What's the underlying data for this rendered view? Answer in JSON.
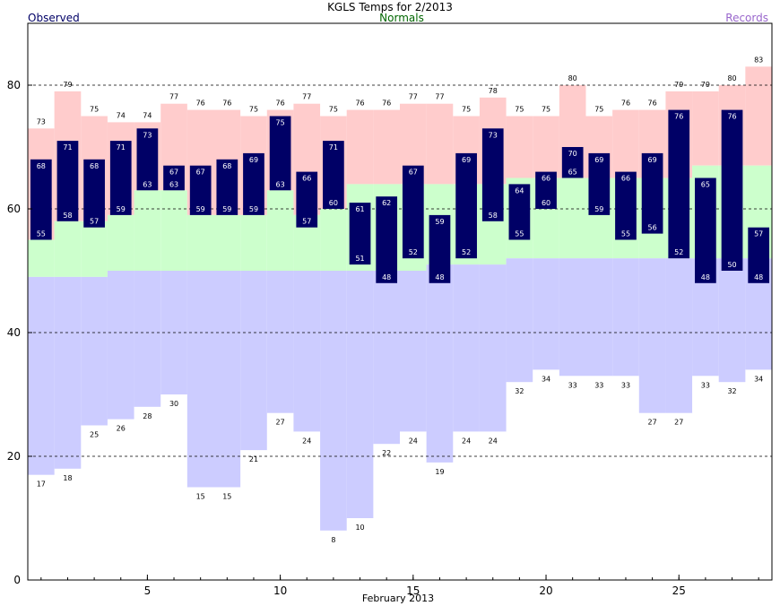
{
  "chart_data": {
    "type": "bar",
    "title": "KGLS Temps for 2/2013",
    "legend": {
      "observed": "Observed",
      "normals": "Normals",
      "records": "Records",
      "placement": "top"
    },
    "xlabel": "February 2013",
    "ylabel": "",
    "xlim": [
      0.5,
      28.5
    ],
    "ylim": [
      0,
      90
    ],
    "grid": "horizontal-dashed",
    "x_ticks": [
      "5",
      "10",
      "15",
      "20",
      "25"
    ],
    "y_ticks": [
      "0",
      "20",
      "40",
      "60",
      "80"
    ],
    "days": [
      1,
      2,
      3,
      4,
      5,
      6,
      7,
      8,
      9,
      10,
      11,
      12,
      13,
      14,
      15,
      16,
      17,
      18,
      19,
      20,
      21,
      22,
      23,
      24,
      25,
      26,
      27,
      28
    ],
    "observed_high": [
      68,
      71,
      68,
      71,
      73,
      67,
      67,
      68,
      69,
      75,
      66,
      71,
      61,
      62,
      67,
      59,
      69,
      73,
      64,
      66,
      70,
      69,
      66,
      69,
      76,
      65,
      76,
      57
    ],
    "observed_low": [
      55,
      58,
      57,
      59,
      63,
      63,
      59,
      59,
      59,
      63,
      57,
      60,
      51,
      48,
      52,
      48,
      52,
      58,
      55,
      60,
      65,
      59,
      55,
      56,
      52,
      48,
      50,
      48
    ],
    "normal_high": [
      55,
      58,
      58,
      59,
      63,
      63,
      59,
      59,
      59,
      63,
      59,
      60,
      64,
      64,
      64,
      64,
      64,
      64,
      65,
      65,
      65,
      65,
      65,
      65,
      65,
      67,
      67,
      67
    ],
    "normal_low": [
      49,
      49,
      49,
      50,
      50,
      50,
      50,
      50,
      50,
      50,
      50,
      50,
      50,
      50,
      50,
      51,
      51,
      51,
      52,
      52,
      52,
      52,
      52,
      52,
      52,
      52,
      52,
      52
    ],
    "record_high": [
      73,
      79,
      75,
      74,
      74,
      77,
      76,
      76,
      75,
      76,
      77,
      75,
      76,
      76,
      77,
      77,
      75,
      78,
      75,
      75,
      80,
      75,
      76,
      76,
      79,
      79,
      80,
      83
    ],
    "record_low": [
      17,
      18,
      25,
      26,
      28,
      30,
      15,
      15,
      21,
      27,
      24,
      8,
      10,
      22,
      24,
      19,
      24,
      24,
      32,
      34,
      33,
      33,
      33,
      27,
      27,
      33,
      32,
      34
    ],
    "colors": {
      "observed": "#000066",
      "normals": "#ccffcc",
      "records_high": "#ffcccc",
      "records_low": "#ccccff",
      "observed_legend": "#000066",
      "normals_legend": "#006600",
      "records_legend": "#9966cc"
    }
  }
}
